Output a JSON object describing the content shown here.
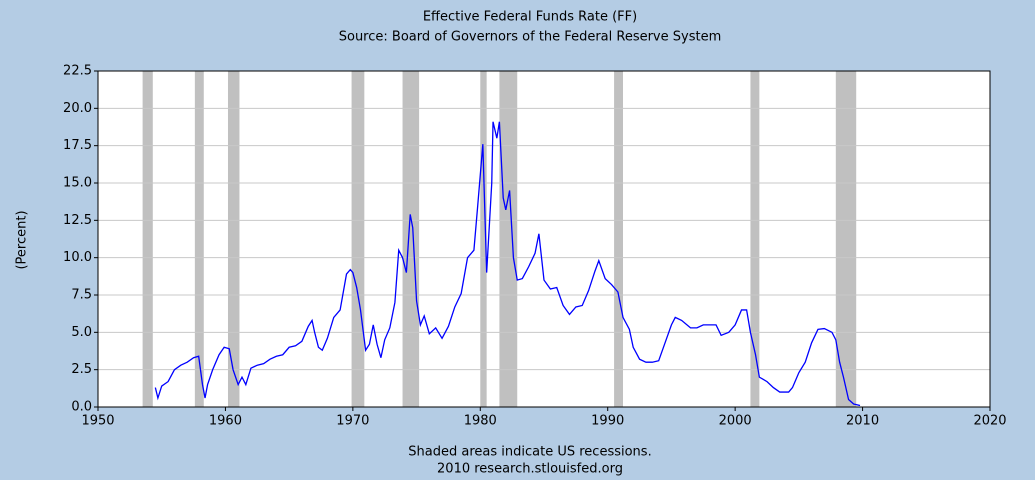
{
  "chart_data": {
    "type": "line",
    "title": "Effective Federal Funds Rate (FF)",
    "subtitle": "Source: Board of Governors of the Federal Reserve System",
    "y_label": "(Percent)",
    "footnote": "Shaded areas indicate US recessions.",
    "credit": "2010 research.stlouisfed.org",
    "xlim": [
      1950,
      2020
    ],
    "xticks": [
      1950,
      1960,
      1970,
      1980,
      1990,
      2000,
      2010,
      2020
    ],
    "ylim": [
      0,
      22.5
    ],
    "yticks": [
      {
        "value": 0,
        "label": "0.0"
      },
      2.5,
      {
        "value": 5,
        "label": "5.0"
      },
      7.5,
      {
        "value": 10,
        "label": "10.0"
      },
      12.5,
      {
        "value": 15,
        "label": "15.0"
      },
      17.5,
      {
        "value": 20,
        "label": "20.0"
      },
      22.5
    ],
    "grid": true,
    "recession_color": "#c0c0c0",
    "recessions": [
      [
        1953.5,
        1954.3
      ],
      [
        1957.6,
        1958.3
      ],
      [
        1960.2,
        1961.1
      ],
      [
        1969.9,
        1970.9
      ],
      [
        1973.9,
        1975.2
      ],
      [
        1980.0,
        1980.5
      ],
      [
        1981.5,
        1982.9
      ],
      [
        1990.5,
        1991.2
      ],
      [
        2001.2,
        2001.9
      ],
      [
        2007.9,
        2009.5
      ]
    ],
    "x": [
      1954.5,
      1954.7,
      1955.0,
      1955.5,
      1956.0,
      1956.5,
      1957.0,
      1957.5,
      1957.9,
      1958.2,
      1958.4,
      1958.6,
      1959.0,
      1959.5,
      1959.9,
      1960.3,
      1960.6,
      1961.0,
      1961.3,
      1961.6,
      1962.0,
      1962.5,
      1963.0,
      1963.5,
      1964.0,
      1964.5,
      1965.0,
      1965.5,
      1966.0,
      1966.5,
      1966.8,
      1967.0,
      1967.3,
      1967.6,
      1968.0,
      1968.5,
      1969.0,
      1969.5,
      1969.8,
      1970.0,
      1970.3,
      1970.6,
      1971.0,
      1971.3,
      1971.6,
      1971.9,
      1972.2,
      1972.5,
      1972.9,
      1973.3,
      1973.6,
      1973.9,
      1974.2,
      1974.5,
      1974.7,
      1975.0,
      1975.3,
      1975.6,
      1976.0,
      1976.5,
      1977.0,
      1977.5,
      1978.0,
      1978.5,
      1979.0,
      1979.5,
      1979.8,
      1980.2,
      1980.5,
      1980.9,
      1981.0,
      1981.3,
      1981.5,
      1981.8,
      1982.0,
      1982.3,
      1982.6,
      1982.9,
      1983.3,
      1983.8,
      1984.3,
      1984.6,
      1985.0,
      1985.5,
      1986.0,
      1986.5,
      1987.0,
      1987.5,
      1988.0,
      1988.5,
      1989.0,
      1989.3,
      1989.8,
      1990.3,
      1990.8,
      1991.2,
      1991.7,
      1992.0,
      1992.5,
      1993.0,
      1993.5,
      1994.0,
      1994.5,
      1995.0,
      1995.3,
      1995.8,
      1996.5,
      1997.0,
      1997.5,
      1998.0,
      1998.5,
      1998.9,
      1999.5,
      2000.0,
      2000.5,
      2000.9,
      2001.2,
      2001.6,
      2001.9,
      2002.5,
      2003.0,
      2003.5,
      2004.2,
      2004.5,
      2005.0,
      2005.5,
      2006.0,
      2006.5,
      2007.0,
      2007.6,
      2007.9,
      2008.2,
      2008.5,
      2008.9,
      2009.3,
      2009.8
    ],
    "series": [
      {
        "name": "FF",
        "color": "#0000ff",
        "values": [
          1.3,
          0.6,
          1.4,
          1.7,
          2.5,
          2.8,
          3.0,
          3.3,
          3.4,
          1.5,
          0.6,
          1.5,
          2.5,
          3.5,
          4.0,
          3.9,
          2.5,
          1.5,
          2.0,
          1.5,
          2.6,
          2.8,
          2.9,
          3.2,
          3.4,
          3.5,
          4.0,
          4.1,
          4.4,
          5.4,
          5.8,
          5.0,
          4.0,
          3.8,
          4.6,
          6.0,
          6.5,
          8.9,
          9.2,
          9.0,
          8.0,
          6.5,
          3.8,
          4.2,
          5.5,
          4.2,
          3.3,
          4.5,
          5.3,
          7.0,
          10.5,
          10.0,
          9.0,
          12.9,
          12.0,
          7.1,
          5.5,
          6.1,
          4.9,
          5.3,
          4.6,
          5.4,
          6.7,
          7.6,
          10.0,
          10.5,
          13.5,
          17.6,
          9.0,
          15.0,
          19.1,
          18.0,
          19.1,
          14.0,
          13.2,
          14.5,
          10.0,
          8.5,
          8.6,
          9.4,
          10.3,
          11.6,
          8.5,
          7.9,
          8.0,
          6.8,
          6.2,
          6.7,
          6.8,
          7.8,
          9.1,
          9.8,
          8.6,
          8.2,
          7.7,
          6.0,
          5.2,
          4.0,
          3.2,
          3.0,
          3.0,
          3.1,
          4.3,
          5.5,
          6.0,
          5.8,
          5.3,
          5.3,
          5.5,
          5.5,
          5.5,
          4.8,
          5.0,
          5.5,
          6.5,
          6.5,
          5.0,
          3.5,
          2.0,
          1.7,
          1.3,
          1.0,
          1.0,
          1.3,
          2.3,
          3.0,
          4.3,
          5.2,
          5.25,
          5.0,
          4.5,
          3.0,
          2.0,
          0.5,
          0.2,
          0.1
        ]
      }
    ]
  }
}
